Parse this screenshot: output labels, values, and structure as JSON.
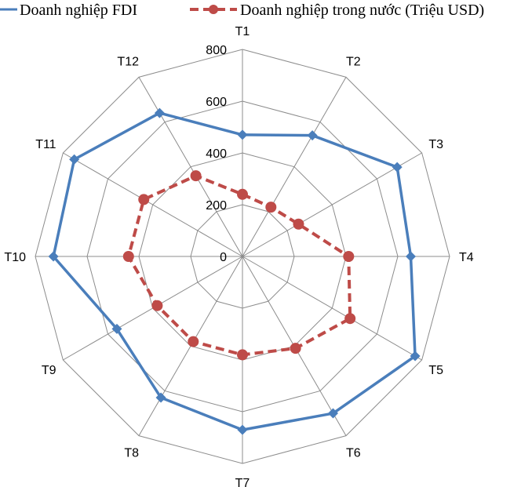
{
  "chart_data": {
    "type": "radar",
    "categories": [
      "T1",
      "T2",
      "T3",
      "T4",
      "T5",
      "T6",
      "T7",
      "T8",
      "T9",
      "T10",
      "T11",
      "T12"
    ],
    "r_ticks": [
      0,
      200,
      400,
      600,
      800
    ],
    "rlim": [
      0,
      800
    ],
    "grid": true,
    "legend_position": "top",
    "series": [
      {
        "name": "Doanh nghiệp FDI",
        "values": [
          470,
          540,
          690,
          650,
          770,
          700,
          670,
          630,
          560,
          730,
          750,
          640
        ],
        "color": "#4A7EBB",
        "line_style": "solid",
        "marker": "diamond"
      },
      {
        "name": "Doanh nghiệp trong nước (Triệu USD)",
        "values": [
          240,
          220,
          250,
          410,
          480,
          410,
          380,
          380,
          380,
          440,
          440,
          360
        ],
        "color": "#BE4B48",
        "line_style": "dashed",
        "marker": "circle"
      }
    ]
  }
}
